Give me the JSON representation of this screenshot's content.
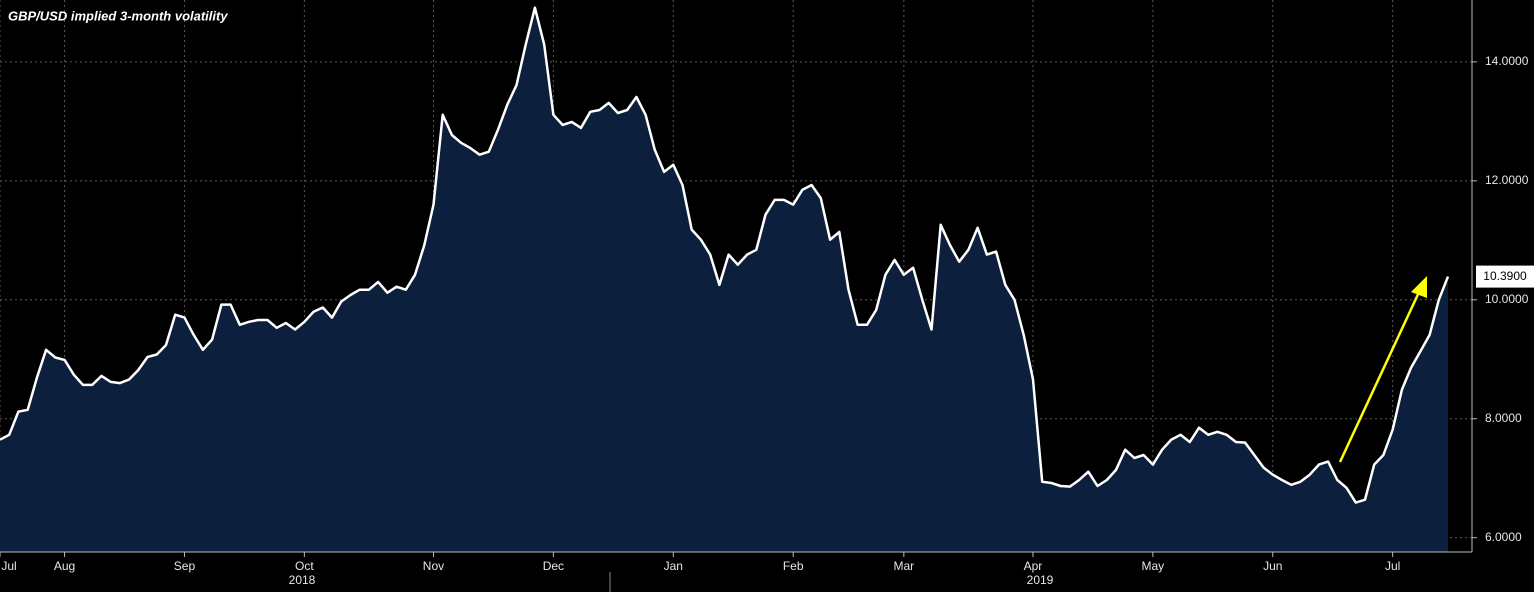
{
  "chart_data": {
    "type": "area",
    "title": "GBP/USD implied 3-month volatility",
    "categories": [
      "Jul",
      null,
      null,
      null,
      null,
      null,
      null,
      "Aug",
      null,
      null,
      null,
      null,
      null,
      null,
      null,
      null,
      null,
      null,
      null,
      null,
      "Sep",
      null,
      null,
      null,
      null,
      null,
      null,
      null,
      null,
      null,
      null,
      null,
      null,
      "Oct",
      null,
      null,
      null,
      null,
      null,
      null,
      null,
      null,
      null,
      null,
      null,
      null,
      null,
      "Nov",
      null,
      null,
      null,
      null,
      null,
      null,
      null,
      null,
      null,
      null,
      null,
      null,
      "Dec",
      null,
      null,
      null,
      null,
      null,
      null,
      null,
      null,
      null,
      null,
      null,
      null,
      "Jan",
      null,
      null,
      null,
      null,
      null,
      null,
      null,
      null,
      null,
      null,
      null,
      null,
      "Feb",
      null,
      null,
      null,
      null,
      null,
      null,
      null,
      null,
      null,
      null,
      null,
      "Mar",
      null,
      null,
      null,
      null,
      null,
      null,
      null,
      null,
      null,
      null,
      null,
      null,
      null,
      "Apr",
      null,
      null,
      null,
      null,
      null,
      null,
      null,
      null,
      null,
      null,
      null,
      null,
      "May",
      null,
      null,
      null,
      null,
      null,
      null,
      null,
      null,
      null,
      null,
      null,
      null,
      "Jun",
      null,
      null,
      null,
      null,
      null,
      null,
      null,
      null,
      null,
      null,
      null,
      null,
      "Jul",
      null,
      null,
      null,
      null,
      null,
      null
    ],
    "values": [
      7.65,
      7.73,
      8.12,
      8.15,
      8.69,
      9.16,
      9.03,
      8.99,
      8.74,
      8.57,
      8.57,
      8.72,
      8.62,
      8.6,
      8.66,
      8.82,
      9.04,
      9.08,
      9.24,
      9.75,
      9.7,
      9.41,
      9.16,
      9.33,
      9.92,
      9.92,
      9.58,
      9.63,
      9.66,
      9.66,
      9.53,
      9.61,
      9.5,
      9.63,
      9.8,
      9.87,
      9.7,
      9.97,
      10.08,
      10.17,
      10.17,
      10.3,
      10.12,
      10.22,
      10.17,
      10.42,
      10.92,
      11.6,
      13.11,
      12.77,
      12.64,
      12.55,
      12.44,
      12.49,
      12.86,
      13.28,
      13.61,
      14.29,
      14.91,
      14.29,
      13.11,
      12.94,
      12.99,
      12.89,
      13.16,
      13.19,
      13.31,
      13.14,
      13.19,
      13.41,
      13.11,
      12.52,
      12.15,
      12.27,
      11.93,
      11.18,
      11.01,
      10.76,
      10.25,
      10.76,
      10.59,
      10.76,
      10.84,
      11.43,
      11.68,
      11.68,
      11.6,
      11.85,
      11.93,
      11.71,
      11.01,
      11.14,
      10.17,
      9.58,
      9.58,
      9.83,
      10.42,
      10.67,
      10.42,
      10.54,
      10.0,
      9.5,
      11.26,
      10.92,
      10.64,
      10.84,
      11.21,
      10.76,
      10.81,
      10.25,
      10.0,
      9.41,
      8.66,
      6.94,
      6.92,
      6.87,
      6.86,
      6.97,
      7.11,
      6.87,
      6.97,
      7.14,
      7.48,
      7.34,
      7.39,
      7.23,
      7.48,
      7.65,
      7.73,
      7.61,
      7.85,
      7.73,
      7.78,
      7.73,
      7.61,
      7.6,
      7.39,
      7.18,
      7.06,
      6.97,
      6.89,
      6.94,
      7.06,
      7.23,
      7.28,
      6.97,
      6.84,
      6.59,
      6.64,
      7.23,
      7.39,
      7.82,
      8.49,
      8.86,
      9.13,
      9.41,
      10.0,
      10.39
    ],
    "last_value_label": "10.3900",
    "year_labels": [
      "2018",
      "2019"
    ],
    "line_color": "#ffffff",
    "fill_color": "#0c203d",
    "annotation_color": "#ffff00",
    "ylim": [
      5.76,
      15.04
    ],
    "yticks": [
      {
        "value": 6,
        "label": "6.0000"
      },
      {
        "value": 8,
        "label": "8.0000"
      },
      {
        "value": 10,
        "label": "10.0000"
      },
      {
        "value": 12,
        "label": "12.0000"
      },
      {
        "value": 14,
        "label": "14.0000"
      }
    ],
    "grid": true
  }
}
